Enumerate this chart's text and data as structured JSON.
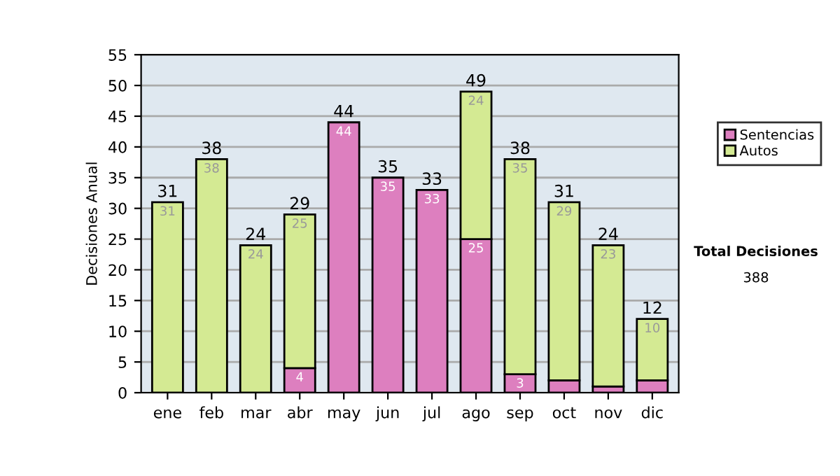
{
  "chart_data": {
    "type": "bar",
    "stacked": true,
    "ylabel": "Decisiones Anual",
    "categories": [
      "ene",
      "feb",
      "mar",
      "abr",
      "may",
      "jun",
      "jul",
      "ago",
      "sep",
      "oct",
      "nov",
      "dic"
    ],
    "series": [
      {
        "name": "Sentencias",
        "color": "#dd7fbf",
        "values": [
          null,
          null,
          null,
          4,
          44,
          35,
          33,
          25,
          3,
          2,
          1,
          2
        ],
        "value_labels": [
          null,
          null,
          null,
          "4",
          "44",
          "35",
          "33",
          "25",
          "3",
          null,
          null,
          null
        ]
      },
      {
        "name": "Autos",
        "color": "#d4ea93",
        "values": [
          31,
          38,
          24,
          25,
          null,
          null,
          null,
          24,
          35,
          29,
          23,
          10
        ],
        "value_labels": [
          "31",
          "38",
          "24",
          "25",
          null,
          null,
          null,
          "24",
          "35",
          "29",
          "23",
          "10"
        ]
      }
    ],
    "totals": [
      "31",
      "38",
      "24",
      "29",
      "44",
      "35",
      "33",
      "49",
      "38",
      "31",
      "24",
      "12"
    ],
    "ylim": [
      0,
      55
    ],
    "yticks": [
      0,
      5,
      10,
      15,
      20,
      25,
      30,
      35,
      40,
      45,
      50,
      55
    ],
    "grid": "y",
    "legend": "right",
    "annotations": [
      "Total Decisiones",
      "388"
    ]
  }
}
